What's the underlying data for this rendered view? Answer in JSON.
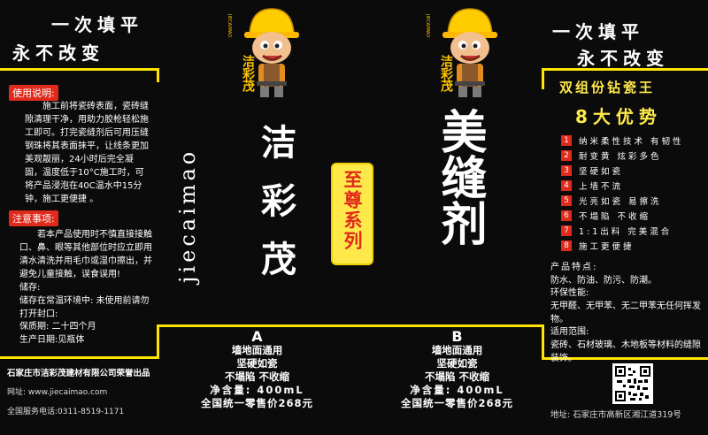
{
  "slogan": {
    "line1": "一次填平",
    "line2": "永不改变"
  },
  "brand": {
    "mascot_name": "洁彩茂",
    "mascot_pinyin": "JIECAIMAO",
    "vertical_name": "洁彩茂",
    "vertical_pinyin": "jiecaimao"
  },
  "product": {
    "title": "美缝剂",
    "series": "至尊系列"
  },
  "usage": {
    "label": "使用说明:",
    "text": "施工前将瓷砖表面，瓷砖缝隙清理干净，用助力胶枪轻松施工即可。打完瓷缝剂后可用压缝钢珠将其表面抹平，让线条更加美观靓丽，24小时后完全凝固，温度低于10°C施工时，可将产品浸泡在40C温水中15分钟，施工更便捷 。"
  },
  "notes": {
    "label": "注意事项:",
    "text1": "若本产品使用时不慎直接接触口、鼻、眼等其他部位时应立即用清水清洗并用毛巾或湿巾擦出，并避免儿童接触，误食误用!",
    "storage_title": "储存:",
    "storage_text": "储存在常温环境中: 未使用前请勿打开封口:",
    "shelf_life": "保质期: 二十四个月",
    "production_date": "生产日期:见瓶体"
  },
  "advantages": {
    "title1": "双组份钻瓷王",
    "title2": "8大优势",
    "items": [
      {
        "num": "1",
        "text": "纳米柔性技术  有韧性"
      },
      {
        "num": "2",
        "text": "耐变黄  炫彩多色"
      },
      {
        "num": "3",
        "text": "坚硬如瓷"
      },
      {
        "num": "4",
        "text": "上墙不流"
      },
      {
        "num": "5",
        "text": "光亮如瓷  易擦洗"
      },
      {
        "num": "6",
        "text": "不塌陷  不收缩"
      },
      {
        "num": "7",
        "text": "1:1出料  完美混合"
      },
      {
        "num": "8",
        "text": "施工更便捷"
      }
    ]
  },
  "features": {
    "label": "产品特点:",
    "text": "防水、防油、防污、防潮。",
    "env_label": "环保性能:",
    "env_text": "无甲醛、无甲苯、无二甲苯无任何挥发物。",
    "scope_label": "适用范围:",
    "scope_text": "瓷砖、石材玻璃、木地板等材料的缝隙装饰。"
  },
  "bottle_a": {
    "letter": "A",
    "line1": "墙地面通用",
    "line2": "坚硬如瓷",
    "line3": "不塌陷  不收缩",
    "content": "净含量: 400mL",
    "price": "全国统一零售价268元"
  },
  "bottle_b": {
    "letter": "B",
    "line1": "墙地面通用",
    "line2": "坚硬如瓷",
    "line3": "不塌陷  不收缩",
    "content": "净含量: 400mL",
    "price": "全国统一零售价268元"
  },
  "company": {
    "name": "石家庄市洁彩茂建材有限公司荣誉出品",
    "website": "网址: www.jiecaimao.com",
    "hotline": "全国服务电话:0311-8519-1171",
    "address": "地址: 石家庄市高新区湘江道319号"
  },
  "colors": {
    "accent_yellow": "#ffe500",
    "label_red": "#e02a1b",
    "background": "#0b0b0b"
  }
}
